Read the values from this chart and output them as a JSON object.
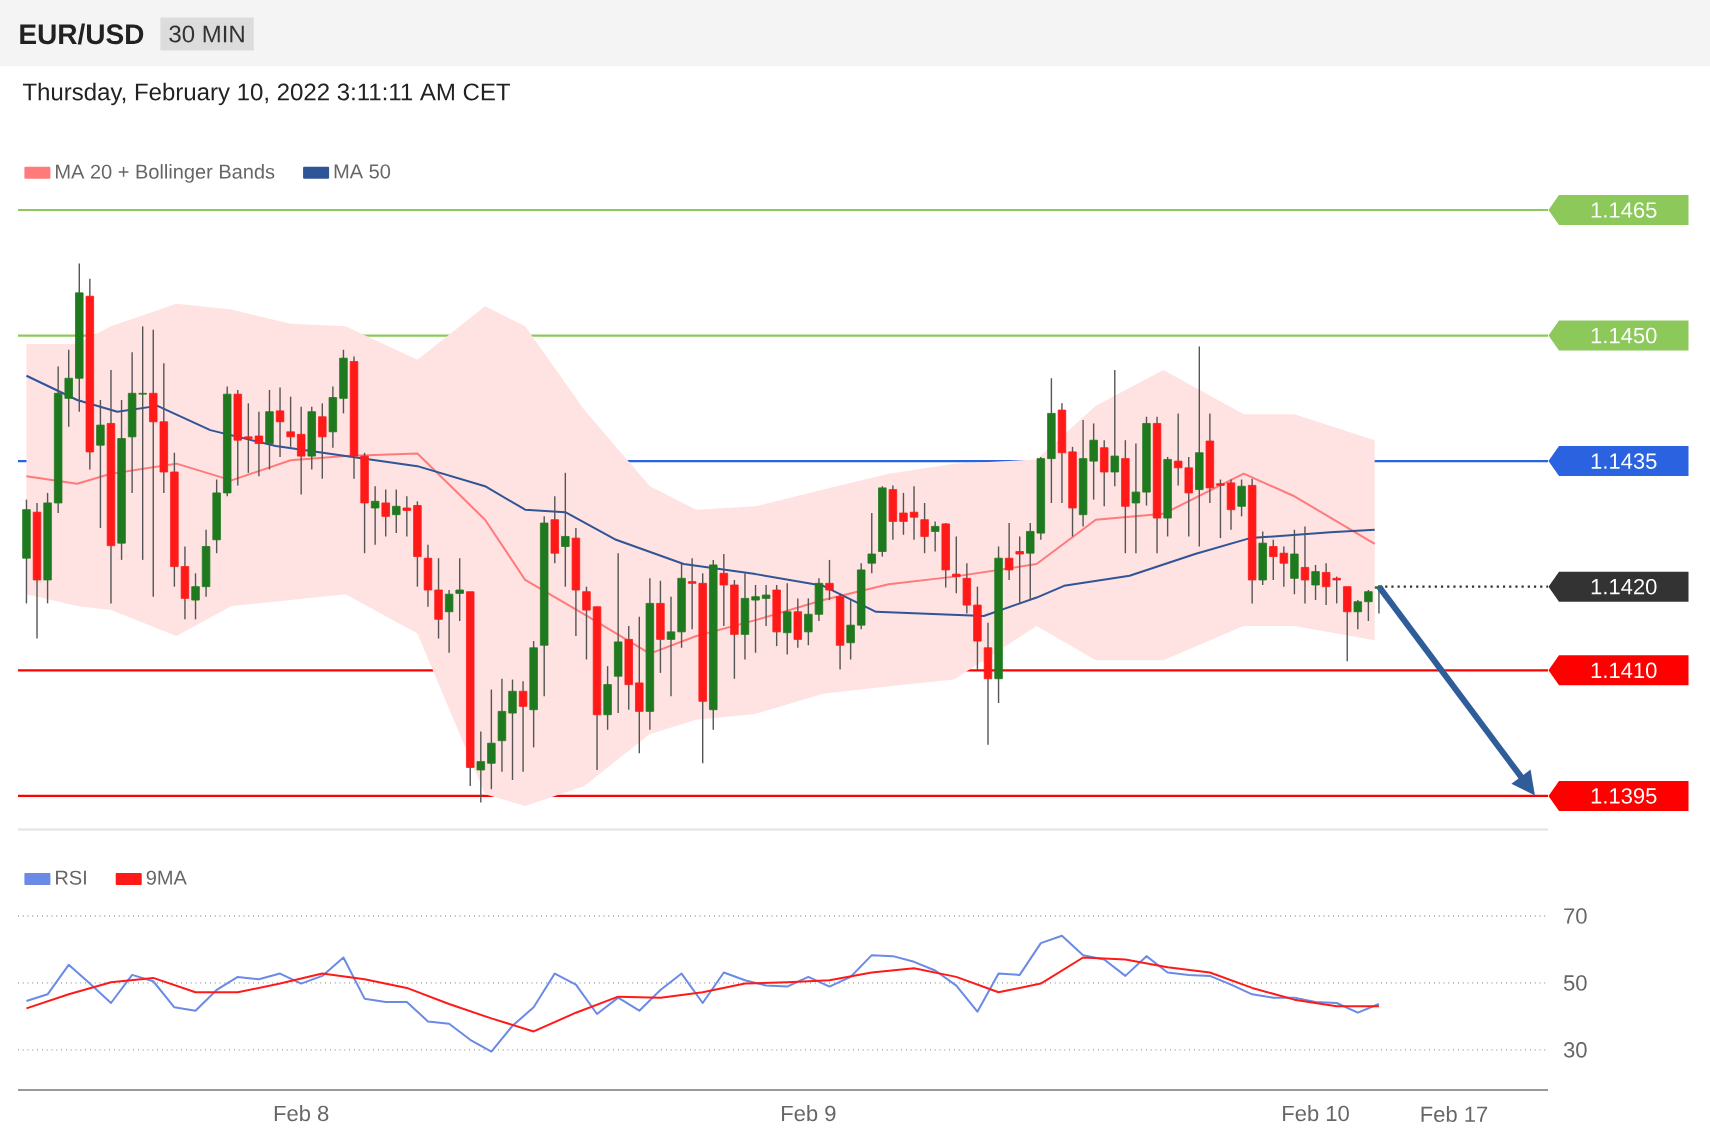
{
  "chart_data": [
    {
      "type": "candlestick",
      "title": "EUR/USD",
      "subtitle": "Thursday, February 10, 2022 3:11:11 AM CET",
      "annotations": [
        "30 MIN"
      ],
      "legend": "top left",
      "tick_labels": "y",
      "xlim": [
        "2022-02-07T10:36",
        "2022-02-10T11:00"
      ],
      "ylim": [
        1.1391,
        1.1465
      ],
      "yticks": [
        {
          "value": 1.1465,
          "label": "1.1465"
        },
        {
          "value": 1.145,
          "label": "1.1450"
        },
        {
          "value": 1.1435,
          "label": "1.1435"
        },
        {
          "value": 1.142,
          "label": "1.1420"
        },
        {
          "value": 1.141,
          "label": "1.1410"
        },
        {
          "value": 1.1395,
          "label": "1.1395"
        }
      ],
      "ref_lines": [
        {
          "axis": "y",
          "value": 1.1465,
          "color": "#8cc85a"
        },
        {
          "axis": "y",
          "value": 1.145,
          "color": "#8cc85a"
        },
        {
          "axis": "y",
          "value": 1.1435,
          "color": "#2a62e0"
        },
        {
          "axis": "y",
          "value": 1.142,
          "color": "#333333",
          "line_style": "dotted"
        },
        {
          "axis": "y",
          "value": 1.141,
          "color": "#ff0000"
        },
        {
          "axis": "y",
          "value": 1.1395,
          "color": "#ff0000"
        }
      ],
      "x": [
        "2022-02-07T11:00",
        "2022-02-07T11:30",
        "2022-02-07T12:00",
        "2022-02-07T12:30",
        "2022-02-07T13:00",
        "2022-02-07T13:30",
        "2022-02-07T14:00",
        "2022-02-07T14:30",
        "2022-02-07T15:00",
        "2022-02-07T15:30",
        "2022-02-07T16:00",
        "2022-02-07T16:30",
        "2022-02-07T17:00",
        "2022-02-07T17:30",
        "2022-02-07T18:00",
        "2022-02-07T18:30",
        "2022-02-07T19:00",
        "2022-02-07T19:30",
        "2022-02-07T20:00",
        "2022-02-07T20:30",
        "2022-02-07T21:00",
        "2022-02-07T21:30",
        "2022-02-07T22:00",
        "2022-02-07T22:30",
        "2022-02-07T23:00",
        "2022-02-07T23:30",
        "2022-02-08T00:00",
        "2022-02-08T00:30",
        "2022-02-08T01:00",
        "2022-02-08T01:30",
        "2022-02-08T02:00",
        "2022-02-08T02:30",
        "2022-02-08T03:00",
        "2022-02-08T03:30",
        "2022-02-08T04:00",
        "2022-02-08T04:30",
        "2022-02-08T05:00",
        "2022-02-08T05:30",
        "2022-02-08T06:00",
        "2022-02-08T06:30",
        "2022-02-08T07:00",
        "2022-02-08T07:30",
        "2022-02-08T08:00",
        "2022-02-08T08:30",
        "2022-02-08T09:00",
        "2022-02-08T09:30",
        "2022-02-08T10:00",
        "2022-02-08T10:30",
        "2022-02-08T11:00",
        "2022-02-08T11:30",
        "2022-02-08T12:00",
        "2022-02-08T12:30",
        "2022-02-08T13:00",
        "2022-02-08T13:30",
        "2022-02-08T14:00",
        "2022-02-08T14:30",
        "2022-02-08T15:00",
        "2022-02-08T15:30",
        "2022-02-08T16:00",
        "2022-02-08T16:30",
        "2022-02-08T17:00",
        "2022-02-08T17:30",
        "2022-02-08T18:00",
        "2022-02-08T18:30",
        "2022-02-08T19:00",
        "2022-02-08T19:30",
        "2022-02-08T20:00",
        "2022-02-08T20:30",
        "2022-02-08T21:00",
        "2022-02-08T21:30",
        "2022-02-08T22:00",
        "2022-02-08T22:30",
        "2022-02-08T23:00",
        "2022-02-08T23:30",
        "2022-02-09T00:00",
        "2022-02-09T00:30",
        "2022-02-09T01:00",
        "2022-02-09T01:30",
        "2022-02-09T02:00",
        "2022-02-09T02:30",
        "2022-02-09T03:00",
        "2022-02-09T03:30",
        "2022-02-09T04:00",
        "2022-02-09T04:30",
        "2022-02-09T05:00",
        "2022-02-09T05:30",
        "2022-02-09T06:00",
        "2022-02-09T06:30",
        "2022-02-09T07:00",
        "2022-02-09T07:30",
        "2022-02-09T08:00",
        "2022-02-09T08:30",
        "2022-02-09T09:00",
        "2022-02-09T09:30",
        "2022-02-09T10:00",
        "2022-02-09T10:30",
        "2022-02-09T11:00",
        "2022-02-09T11:30",
        "2022-02-09T12:00",
        "2022-02-09T12:30",
        "2022-02-09T13:00",
        "2022-02-09T13:30",
        "2022-02-09T14:00",
        "2022-02-09T14:30",
        "2022-02-09T15:00",
        "2022-02-09T15:30",
        "2022-02-09T16:00",
        "2022-02-09T16:30",
        "2022-02-09T17:00",
        "2022-02-09T17:30",
        "2022-02-09T18:00",
        "2022-02-09T18:30",
        "2022-02-09T19:00",
        "2022-02-09T19:30",
        "2022-02-09T20:00",
        "2022-02-09T20:30",
        "2022-02-09T21:00",
        "2022-02-09T21:30",
        "2022-02-09T22:00",
        "2022-02-09T22:30",
        "2022-02-09T23:00",
        "2022-02-09T23:30",
        "2022-02-10T00:00",
        "2022-02-10T00:30",
        "2022-02-10T01:00",
        "2022-02-10T01:30",
        "2022-02-10T02:00",
        "2022-02-10T02:30",
        "2022-02-10T03:00"
      ],
      "ohlc": [
        [
          1.14234,
          1.14304,
          1.1418,
          1.14292
        ],
        [
          1.14289,
          1.143,
          1.14138,
          1.14208
        ],
        [
          1.14208,
          1.14312,
          1.1418,
          1.143
        ],
        [
          1.143,
          1.14463,
          1.14288,
          1.14431
        ],
        [
          1.14425,
          1.14483,
          1.14391,
          1.14449
        ],
        [
          1.14449,
          1.14586,
          1.14409,
          1.14551
        ],
        [
          1.14547,
          1.14568,
          1.1434,
          1.14361
        ],
        [
          1.14369,
          1.14423,
          1.1427,
          1.14393
        ],
        [
          1.14395,
          1.14459,
          1.1418,
          1.14249
        ],
        [
          1.14252,
          1.14423,
          1.14232,
          1.14377
        ],
        [
          1.14379,
          1.1448,
          1.14312,
          1.14431
        ],
        [
          1.1443,
          1.14511,
          1.14232,
          1.14431
        ],
        [
          1.14431,
          1.14507,
          1.14188,
          1.14397
        ],
        [
          1.14397,
          1.14467,
          1.14312,
          1.14337
        ],
        [
          1.14337,
          1.1436,
          1.142,
          1.14224
        ],
        [
          1.14224,
          1.14248,
          1.14161,
          1.14186
        ],
        [
          1.14184,
          1.14216,
          1.14161,
          1.142
        ],
        [
          1.142,
          1.14268,
          1.14188,
          1.14248
        ],
        [
          1.14256,
          1.14328,
          1.1424,
          1.14312
        ],
        [
          1.14312,
          1.14439,
          1.14308,
          1.1443
        ],
        [
          1.1443,
          1.14435,
          1.14321,
          1.14375
        ],
        [
          1.14379,
          1.14419,
          1.14336,
          1.14377
        ],
        [
          1.1438,
          1.14409,
          1.14332,
          1.14371
        ],
        [
          1.14371,
          1.14435,
          1.1434,
          1.14409
        ],
        [
          1.1441,
          1.14438,
          1.14355,
          1.14397
        ],
        [
          1.14385,
          1.14427,
          1.14367,
          1.14379
        ],
        [
          1.14382,
          1.14415,
          1.1431,
          1.14356
        ],
        [
          1.14356,
          1.14415,
          1.1434,
          1.14409
        ],
        [
          1.14403,
          1.14419,
          1.14329,
          1.14379
        ],
        [
          1.14385,
          1.14439,
          1.14366,
          1.14426
        ],
        [
          1.14425,
          1.14483,
          1.14407,
          1.14473
        ],
        [
          1.14469,
          1.14475,
          1.14329,
          1.14356
        ],
        [
          1.14356,
          1.1436,
          1.1424,
          1.143
        ],
        [
          1.14294,
          1.1432,
          1.1425,
          1.14302
        ],
        [
          1.143,
          1.14316,
          1.1426,
          1.14284
        ],
        [
          1.14286,
          1.14316,
          1.14264,
          1.14296
        ],
        [
          1.14294,
          1.14308,
          1.1426,
          1.14291
        ],
        [
          1.14297,
          1.14302,
          1.142,
          1.14236
        ],
        [
          1.14234,
          1.1425,
          1.14176,
          1.14196
        ],
        [
          1.14196,
          1.14234,
          1.14138,
          1.14161
        ],
        [
          1.1417,
          1.14196,
          1.14121,
          1.14191
        ],
        [
          1.14192,
          1.14234,
          1.14159,
          1.14196
        ],
        [
          1.14194,
          1.14194,
          1.13962,
          1.13984
        ],
        [
          1.13981,
          1.14027,
          1.13942,
          1.13991
        ],
        [
          1.13989,
          1.14077,
          1.13958,
          1.14013
        ],
        [
          1.14016,
          1.1409,
          1.13979,
          1.14051
        ],
        [
          1.14049,
          1.14089,
          1.13969,
          1.14075
        ],
        [
          1.14075,
          1.14087,
          1.13979,
          1.14057
        ],
        [
          1.14053,
          1.14135,
          1.14008,
          1.14127
        ],
        [
          1.1413,
          1.14284,
          1.14069,
          1.14276
        ],
        [
          1.1428,
          1.14308,
          1.14228,
          1.1424
        ],
        [
          1.14248,
          1.14336,
          1.142,
          1.1426
        ],
        [
          1.14258,
          1.1427,
          1.14141,
          1.14196
        ],
        [
          1.14194,
          1.142,
          1.14113,
          1.14172
        ],
        [
          1.14176,
          1.14176,
          1.13981,
          1.14047
        ],
        [
          1.14047,
          1.14105,
          1.14029,
          1.14083
        ],
        [
          1.14093,
          1.1424,
          1.14049,
          1.14134
        ],
        [
          1.14137,
          1.14153,
          1.14053,
          1.14083
        ],
        [
          1.14085,
          1.14164,
          1.14001,
          1.14051
        ],
        [
          1.14051,
          1.1421,
          1.14029,
          1.1418
        ],
        [
          1.1418,
          1.14207,
          1.14097,
          1.14137
        ],
        [
          1.14137,
          1.14188,
          1.14069,
          1.14146
        ],
        [
          1.14146,
          1.14228,
          1.14127,
          1.1421
        ],
        [
          1.14206,
          1.14234,
          1.14149,
          1.14204
        ],
        [
          1.14204,
          1.14216,
          1.13989,
          1.14063
        ],
        [
          1.14053,
          1.14232,
          1.14029,
          1.14226
        ],
        [
          1.14216,
          1.14239,
          1.14153,
          1.14202
        ],
        [
          1.14202,
          1.14208,
          1.1409,
          1.14143
        ],
        [
          1.14143,
          1.14216,
          1.14113,
          1.14186
        ],
        [
          1.14184,
          1.14202,
          1.14121,
          1.14188
        ],
        [
          1.14186,
          1.14202,
          1.14153,
          1.1419
        ],
        [
          1.14196,
          1.14202,
          1.14129,
          1.14146
        ],
        [
          1.14145,
          1.14204,
          1.14119,
          1.1417
        ],
        [
          1.1417,
          1.14186,
          1.14127,
          1.14137
        ],
        [
          1.14146,
          1.14186,
          1.1413,
          1.14167
        ],
        [
          1.14167,
          1.1421,
          1.14159,
          1.14204
        ],
        [
          1.14204,
          1.14232,
          1.14184,
          1.14196
        ],
        [
          1.14188,
          1.14192,
          1.14101,
          1.1413
        ],
        [
          1.14133,
          1.14184,
          1.14113,
          1.14154
        ],
        [
          1.14154,
          1.14228,
          1.14149,
          1.1422
        ],
        [
          1.14228,
          1.14288,
          1.14216,
          1.14239
        ],
        [
          1.14242,
          1.1432,
          1.14236,
          1.14318
        ],
        [
          1.14316,
          1.14321,
          1.14256,
          1.14278
        ],
        [
          1.14288,
          1.14312,
          1.14262,
          1.14278
        ],
        [
          1.14289,
          1.1432,
          1.14256,
          1.14283
        ],
        [
          1.1428,
          1.143,
          1.1424,
          1.1426
        ],
        [
          1.14266,
          1.14278,
          1.14242,
          1.14272
        ],
        [
          1.14275,
          1.14276,
          1.14199,
          1.1422
        ],
        [
          1.14215,
          1.1426,
          1.14192,
          1.14212
        ],
        [
          1.1421,
          1.14228,
          1.14168,
          1.14178
        ],
        [
          1.14178,
          1.142,
          1.14101,
          1.14135
        ],
        [
          1.14127,
          1.14157,
          1.14011,
          1.1409
        ],
        [
          1.1409,
          1.14248,
          1.14061,
          1.14234
        ],
        [
          1.14234,
          1.14276,
          1.14208,
          1.1422
        ],
        [
          1.14242,
          1.1426,
          1.1418,
          1.14239
        ],
        [
          1.1424,
          1.14276,
          1.14184,
          1.14266
        ],
        [
          1.14264,
          1.14355,
          1.14256,
          1.14353
        ],
        [
          1.14353,
          1.14449,
          1.143,
          1.14407
        ],
        [
          1.14411,
          1.14419,
          1.143,
          1.1436
        ],
        [
          1.14361,
          1.14367,
          1.1426,
          1.14294
        ],
        [
          1.14286,
          1.14399,
          1.14272,
          1.14353
        ],
        [
          1.1435,
          1.14395,
          1.14304,
          1.14375
        ],
        [
          1.14366,
          1.14375,
          1.14296,
          1.14337
        ],
        [
          1.14337,
          1.14459,
          1.1432,
          1.14356
        ],
        [
          1.14353,
          1.14375,
          1.1424,
          1.14296
        ],
        [
          1.143,
          1.14371,
          1.1424,
          1.14313
        ],
        [
          1.14313,
          1.14403,
          1.14297,
          1.14395
        ],
        [
          1.14395,
          1.14403,
          1.1424,
          1.14282
        ],
        [
          1.14282,
          1.14355,
          1.1426,
          1.14352
        ],
        [
          1.1435,
          1.14407,
          1.14321,
          1.14342
        ],
        [
          1.14342,
          1.14355,
          1.1426,
          1.14312
        ],
        [
          1.14316,
          1.14487,
          1.14248,
          1.1436
        ],
        [
          1.14374,
          1.14407,
          1.143,
          1.14318
        ],
        [
          1.14323,
          1.14328,
          1.14258,
          1.14321
        ],
        [
          1.14324,
          1.14328,
          1.14268,
          1.14292
        ],
        [
          1.14296,
          1.14328,
          1.14284,
          1.1432
        ],
        [
          1.14321,
          1.14329,
          1.1418,
          1.14208
        ],
        [
          1.14208,
          1.14266,
          1.14202,
          1.14252
        ],
        [
          1.14248,
          1.14256,
          1.14208,
          1.14236
        ],
        [
          1.1424,
          1.14248,
          1.142,
          1.14228
        ],
        [
          1.1421,
          1.14268,
          1.14191,
          1.14239
        ],
        [
          1.14223,
          1.14272,
          1.1418,
          1.14208
        ],
        [
          1.14202,
          1.14226,
          1.14184,
          1.14218
        ],
        [
          1.14217,
          1.14228,
          1.14178,
          1.142
        ],
        [
          1.1421,
          1.14212,
          1.1418,
          1.14208
        ],
        [
          1.142,
          1.142,
          1.14111,
          1.1417
        ],
        [
          1.1417,
          1.14184,
          1.14149,
          1.14182
        ],
        [
          1.14182,
          1.14196,
          1.14159,
          1.14194
        ],
        [
          1.14198,
          1.14202,
          1.14168,
          1.142
        ]
      ],
      "series": [
        {
          "name": "MA 20 + Bollinger Bands",
          "type": "line",
          "color": "#ff7b7b",
          "x": [
            "2022-02-07T11:00",
            "2022-02-07T13:24",
            "2022-02-07T15:00",
            "2022-02-07T18:06",
            "2022-02-07T20:42",
            "2022-02-07T23:30",
            "2022-02-08T02:06",
            "2022-02-08T05:30",
            "2022-02-08T08:42",
            "2022-02-08T10:36",
            "2022-02-08T13:24",
            "2022-02-08T16:30",
            "2022-02-08T18:42",
            "2022-02-08T21:30",
            "2022-02-09T00:42",
            "2022-02-09T03:48",
            "2022-02-09T06:54",
            "2022-02-09T10:48",
            "2022-02-09T13:36",
            "2022-02-09T16:48",
            "2022-02-09T20:36",
            "2022-02-09T23:00",
            "2022-02-10T02:48"
          ],
          "values": [
            1.14332,
            1.14323,
            1.14335,
            1.14347,
            1.14327,
            1.14351,
            1.14356,
            1.14359,
            1.1428,
            1.14208,
            1.14167,
            1.1412,
            1.14141,
            1.1416,
            1.14184,
            1.14203,
            1.14212,
            1.14227,
            1.1428,
            1.14287,
            1.14335,
            1.14308,
            1.14251
          ],
          "lower": [
            1.14191,
            1.14177,
            1.14172,
            1.14141,
            1.14177,
            1.14184,
            1.14191,
            1.14144,
            1.13952,
            1.13938,
            1.13962,
            1.14024,
            1.14041,
            1.14048,
            1.14072,
            1.14081,
            1.14089,
            1.14153,
            1.14112,
            1.14112,
            1.14153,
            1.14153,
            1.14136
          ],
          "upper": [
            1.1449,
            1.1449,
            1.14511,
            1.14538,
            1.14531,
            1.14514,
            1.14511,
            1.14471,
            1.14535,
            1.14511,
            1.14411,
            1.1432,
            1.14292,
            1.14296,
            1.14316,
            1.14335,
            1.14347,
            1.14352,
            1.14416,
            1.14459,
            1.14406,
            1.14406,
            1.14375
          ]
        },
        {
          "name": "MA 50",
          "type": "line",
          "color": "#2f5597",
          "x": [
            "2022-02-07T11:00",
            "2022-02-07T13:24",
            "2022-02-07T15:18",
            "2022-02-07T17:12",
            "2022-02-07T19:42",
            "2022-02-07T22:48",
            "2022-02-08T02:06",
            "2022-02-08T05:30",
            "2022-02-08T08:42",
            "2022-02-08T10:36",
            "2022-02-08T12:30",
            "2022-02-08T14:54",
            "2022-02-08T18:06",
            "2022-02-08T21:30",
            "2022-02-09T00:42",
            "2022-02-09T03:12",
            "2022-02-09T08:18",
            "2022-02-09T10:48",
            "2022-02-09T12:06",
            "2022-02-09T15:12",
            "2022-02-09T18:18",
            "2022-02-09T20:54",
            "2022-02-10T00:42",
            "2022-02-10T02:48"
          ],
          "values": [
            1.14452,
            1.14423,
            1.14409,
            1.14416,
            1.14387,
            1.14368,
            1.14356,
            1.14344,
            1.1432,
            1.14292,
            1.14289,
            1.14256,
            1.14227,
            1.14215,
            1.14201,
            1.1417,
            1.14165,
            1.14187,
            1.14201,
            1.14213,
            1.14239,
            1.14258,
            1.14265,
            1.14268
          ]
        }
      ]
    },
    {
      "type": "line",
      "legend": "top left",
      "grid": "y",
      "annotations": [
        "Feb 17"
      ],
      "xlim": [
        "2022-02-07T10:36",
        "2022-02-10T11:00"
      ],
      "xticks": [
        {
          "value": "2022-02-08",
          "label": "Feb 8"
        },
        {
          "value": "2022-02-09",
          "label": "Feb 9"
        },
        {
          "value": "2022-02-10",
          "label": "Feb 10"
        }
      ],
      "ylim": [
        18,
        70
      ],
      "yticks": [
        30,
        50,
        70
      ],
      "series": [
        {
          "name": "RSI",
          "color": "#6a8ae6",
          "x": [
            "2022-02-07T11:00",
            "2022-02-07T12:00",
            "2022-02-07T13:00",
            "2022-02-07T14:00",
            "2022-02-07T15:00",
            "2022-02-07T16:00",
            "2022-02-07T17:00",
            "2022-02-07T18:00",
            "2022-02-07T19:00",
            "2022-02-07T20:00",
            "2022-02-07T21:00",
            "2022-02-07T22:00",
            "2022-02-07T23:00",
            "2022-02-08T00:00",
            "2022-02-08T01:00",
            "2022-02-08T02:00",
            "2022-02-08T03:00",
            "2022-02-08T04:00",
            "2022-02-08T05:00",
            "2022-02-08T06:00",
            "2022-02-08T07:00",
            "2022-02-08T08:00",
            "2022-02-08T09:00",
            "2022-02-08T10:00",
            "2022-02-08T11:00",
            "2022-02-08T12:00",
            "2022-02-08T13:00",
            "2022-02-08T14:00",
            "2022-02-08T15:00",
            "2022-02-08T16:00",
            "2022-02-08T17:00",
            "2022-02-08T18:00",
            "2022-02-08T19:00",
            "2022-02-08T20:00",
            "2022-02-08T21:00",
            "2022-02-08T22:00",
            "2022-02-08T23:00",
            "2022-02-09T00:00",
            "2022-02-09T01:00",
            "2022-02-09T02:00",
            "2022-02-09T03:00",
            "2022-02-09T04:00",
            "2022-02-09T05:00",
            "2022-02-09T06:00",
            "2022-02-09T07:00",
            "2022-02-09T08:00",
            "2022-02-09T09:00",
            "2022-02-09T10:00",
            "2022-02-09T11:00",
            "2022-02-09T12:00",
            "2022-02-09T13:00",
            "2022-02-09T14:00",
            "2022-02-09T15:00",
            "2022-02-09T16:00",
            "2022-02-09T17:00",
            "2022-02-09T18:00",
            "2022-02-09T19:00",
            "2022-02-09T20:00",
            "2022-02-09T21:00",
            "2022-02-09T22:00",
            "2022-02-09T23:00",
            "2022-02-10T00:00",
            "2022-02-10T01:00",
            "2022-02-10T02:00",
            "2022-02-10T03:00"
          ],
          "values": [
            44.6,
            46.6,
            55.4,
            49.8,
            44.0,
            52.4,
            50.5,
            42.7,
            41.7,
            47.9,
            51.8,
            51.1,
            52.8,
            49.8,
            52.1,
            57.6,
            45.3,
            44.3,
            44.3,
            38.5,
            37.8,
            33.0,
            29.5,
            37.2,
            42.7,
            52.8,
            49.5,
            40.7,
            45.6,
            41.7,
            47.9,
            52.8,
            44.0,
            53.1,
            50.8,
            49.2,
            48.9,
            51.8,
            48.9,
            51.8,
            58.3,
            58.0,
            56.3,
            53.7,
            49.2,
            41.4,
            52.8,
            52.4,
            61.9,
            64.1,
            58.3,
            57.0,
            52.1,
            58.0,
            53.1,
            52.4,
            52.1,
            49.5,
            46.6,
            45.6,
            45.6,
            44.3,
            44.0,
            41.1,
            43.7
          ]
        },
        {
          "name": "9MA",
          "color": "#ff1a1a",
          "x": [
            "2022-02-07T11:00",
            "2022-02-07T13:00",
            "2022-02-07T15:00",
            "2022-02-07T17:00",
            "2022-02-07T19:00",
            "2022-02-07T21:00",
            "2022-02-07T23:00",
            "2022-02-08T01:00",
            "2022-02-08T03:00",
            "2022-02-08T05:00",
            "2022-02-08T07:00",
            "2022-02-08T09:00",
            "2022-02-08T11:00",
            "2022-02-08T13:00",
            "2022-02-08T15:00",
            "2022-02-08T17:00",
            "2022-02-08T19:00",
            "2022-02-08T21:00",
            "2022-02-08T23:00",
            "2022-02-09T01:00",
            "2022-02-09T03:00",
            "2022-02-09T05:00",
            "2022-02-09T07:00",
            "2022-02-09T09:00",
            "2022-02-09T11:00",
            "2022-02-09T13:00",
            "2022-02-09T15:00",
            "2022-02-09T17:00",
            "2022-02-09T19:00",
            "2022-02-09T21:00",
            "2022-02-09T23:00",
            "2022-02-10T01:00",
            "2022-02-10T03:00"
          ],
          "values": [
            42.4,
            46.6,
            50.2,
            51.5,
            47.2,
            47.2,
            49.8,
            52.8,
            51.1,
            48.5,
            43.7,
            39.4,
            35.5,
            41.1,
            45.9,
            45.6,
            47.2,
            49.8,
            50.2,
            50.8,
            53.1,
            54.4,
            51.8,
            47.2,
            49.8,
            57.6,
            57.0,
            54.7,
            53.1,
            48.5,
            45.0,
            43.0,
            43.0
          ]
        }
      ]
    }
  ]
}
